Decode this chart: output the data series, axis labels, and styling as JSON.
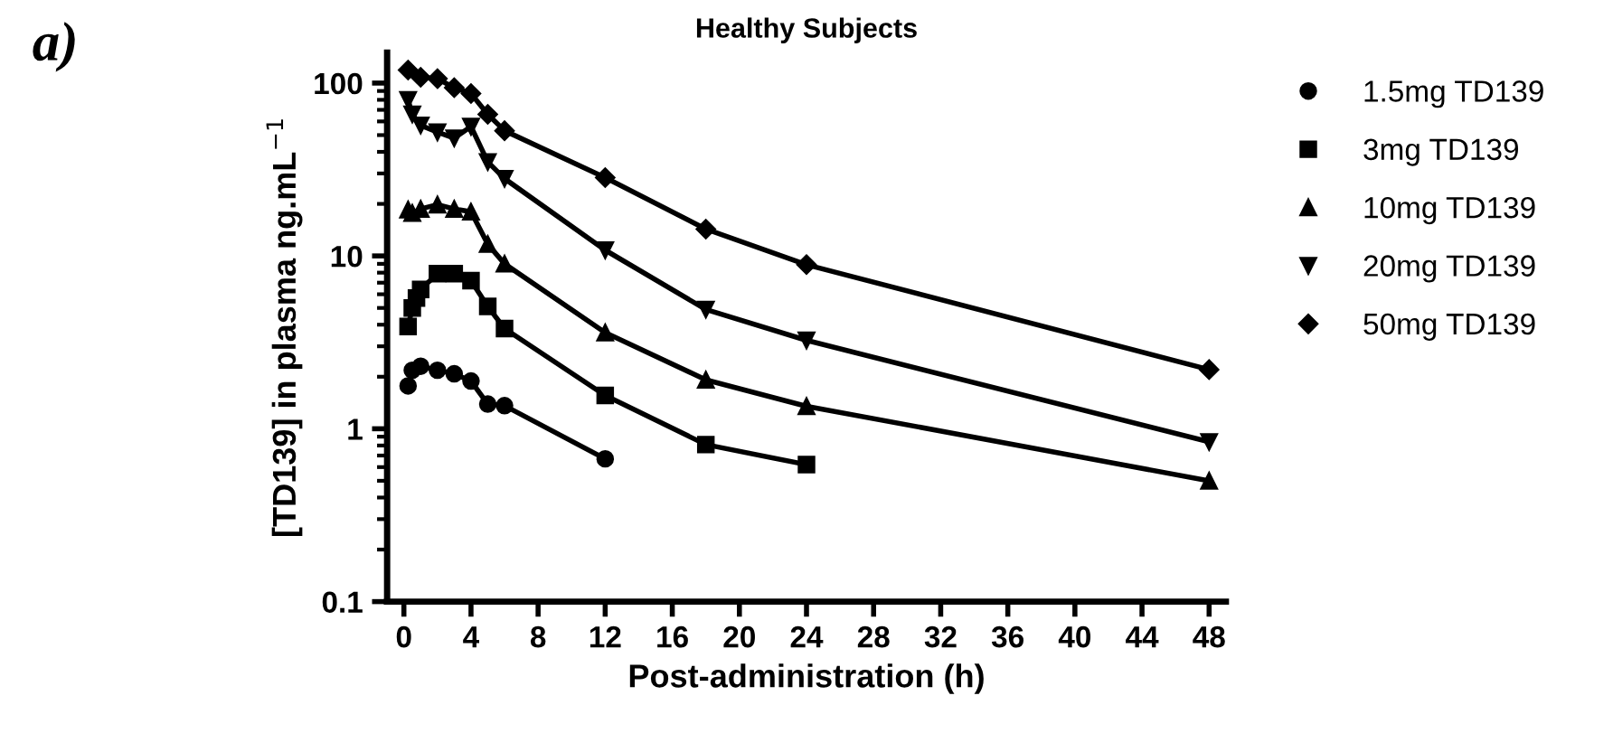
{
  "chart_data": {
    "type": "line",
    "title": "Healthy Subjects",
    "xlabel": "Post-administration (h)",
    "ylabel": "[TD139] in plasma ng.mL$^{−1}$",
    "annotations": [
      "a)"
    ],
    "log": "y",
    "ylim": [
      0.1,
      150
    ],
    "yticks": [
      0.1,
      1,
      10,
      100
    ],
    "xlim": [
      -1,
      49
    ],
    "xticks": [
      0,
      4,
      8,
      12,
      16,
      20,
      24,
      28,
      32,
      36,
      40,
      44,
      48
    ],
    "grid": false,
    "legend": "right",
    "line_style": "solid",
    "series": [
      {
        "name": "1.5mg TD139",
        "color": "#000000",
        "marker": "circle",
        "x": [
          0.25,
          0.5,
          1,
          2,
          3,
          4,
          5,
          6,
          12
        ],
        "values": [
          1.77,
          2.18,
          2.3,
          2.18,
          2.08,
          1.89,
          1.39,
          1.36,
          0.67
        ]
      },
      {
        "name": "3mg TD139",
        "color": "#000000",
        "marker": "square",
        "x": [
          0.25,
          0.5,
          0.75,
          1,
          2,
          3,
          4,
          5,
          6,
          12,
          18,
          24
        ],
        "values": [
          3.9,
          5.0,
          5.7,
          6.4,
          7.9,
          7.9,
          7.2,
          5.1,
          3.8,
          1.56,
          0.81,
          0.62
        ]
      },
      {
        "name": "10mg TD139",
        "color": "#000000",
        "marker": "triangle",
        "x": [
          0.25,
          0.5,
          1,
          2,
          3,
          4,
          5,
          6,
          12,
          18,
          24,
          48
        ],
        "values": [
          18.5,
          17.7,
          18.7,
          19.8,
          18.7,
          18.0,
          11.7,
          9.0,
          3.6,
          1.92,
          1.35,
          0.5
        ]
      },
      {
        "name": "20mg TD139",
        "color": "#000000",
        "marker": "triangle_down",
        "x": [
          0.25,
          0.5,
          1,
          2,
          3,
          4,
          5,
          6,
          12,
          18,
          24,
          48
        ],
        "values": [
          80,
          66,
          57,
          52,
          48,
          56,
          35,
          28,
          10.8,
          4.9,
          3.25,
          0.84
        ]
      },
      {
        "name": "50mg TD139",
        "color": "#000000",
        "marker": "diamond",
        "x": [
          0.25,
          1,
          2,
          3,
          4,
          5,
          6,
          12,
          18,
          24,
          48
        ],
        "values": [
          119,
          108,
          106,
          94,
          87,
          66,
          53,
          28.4,
          14.3,
          8.9,
          2.2
        ]
      }
    ]
  }
}
